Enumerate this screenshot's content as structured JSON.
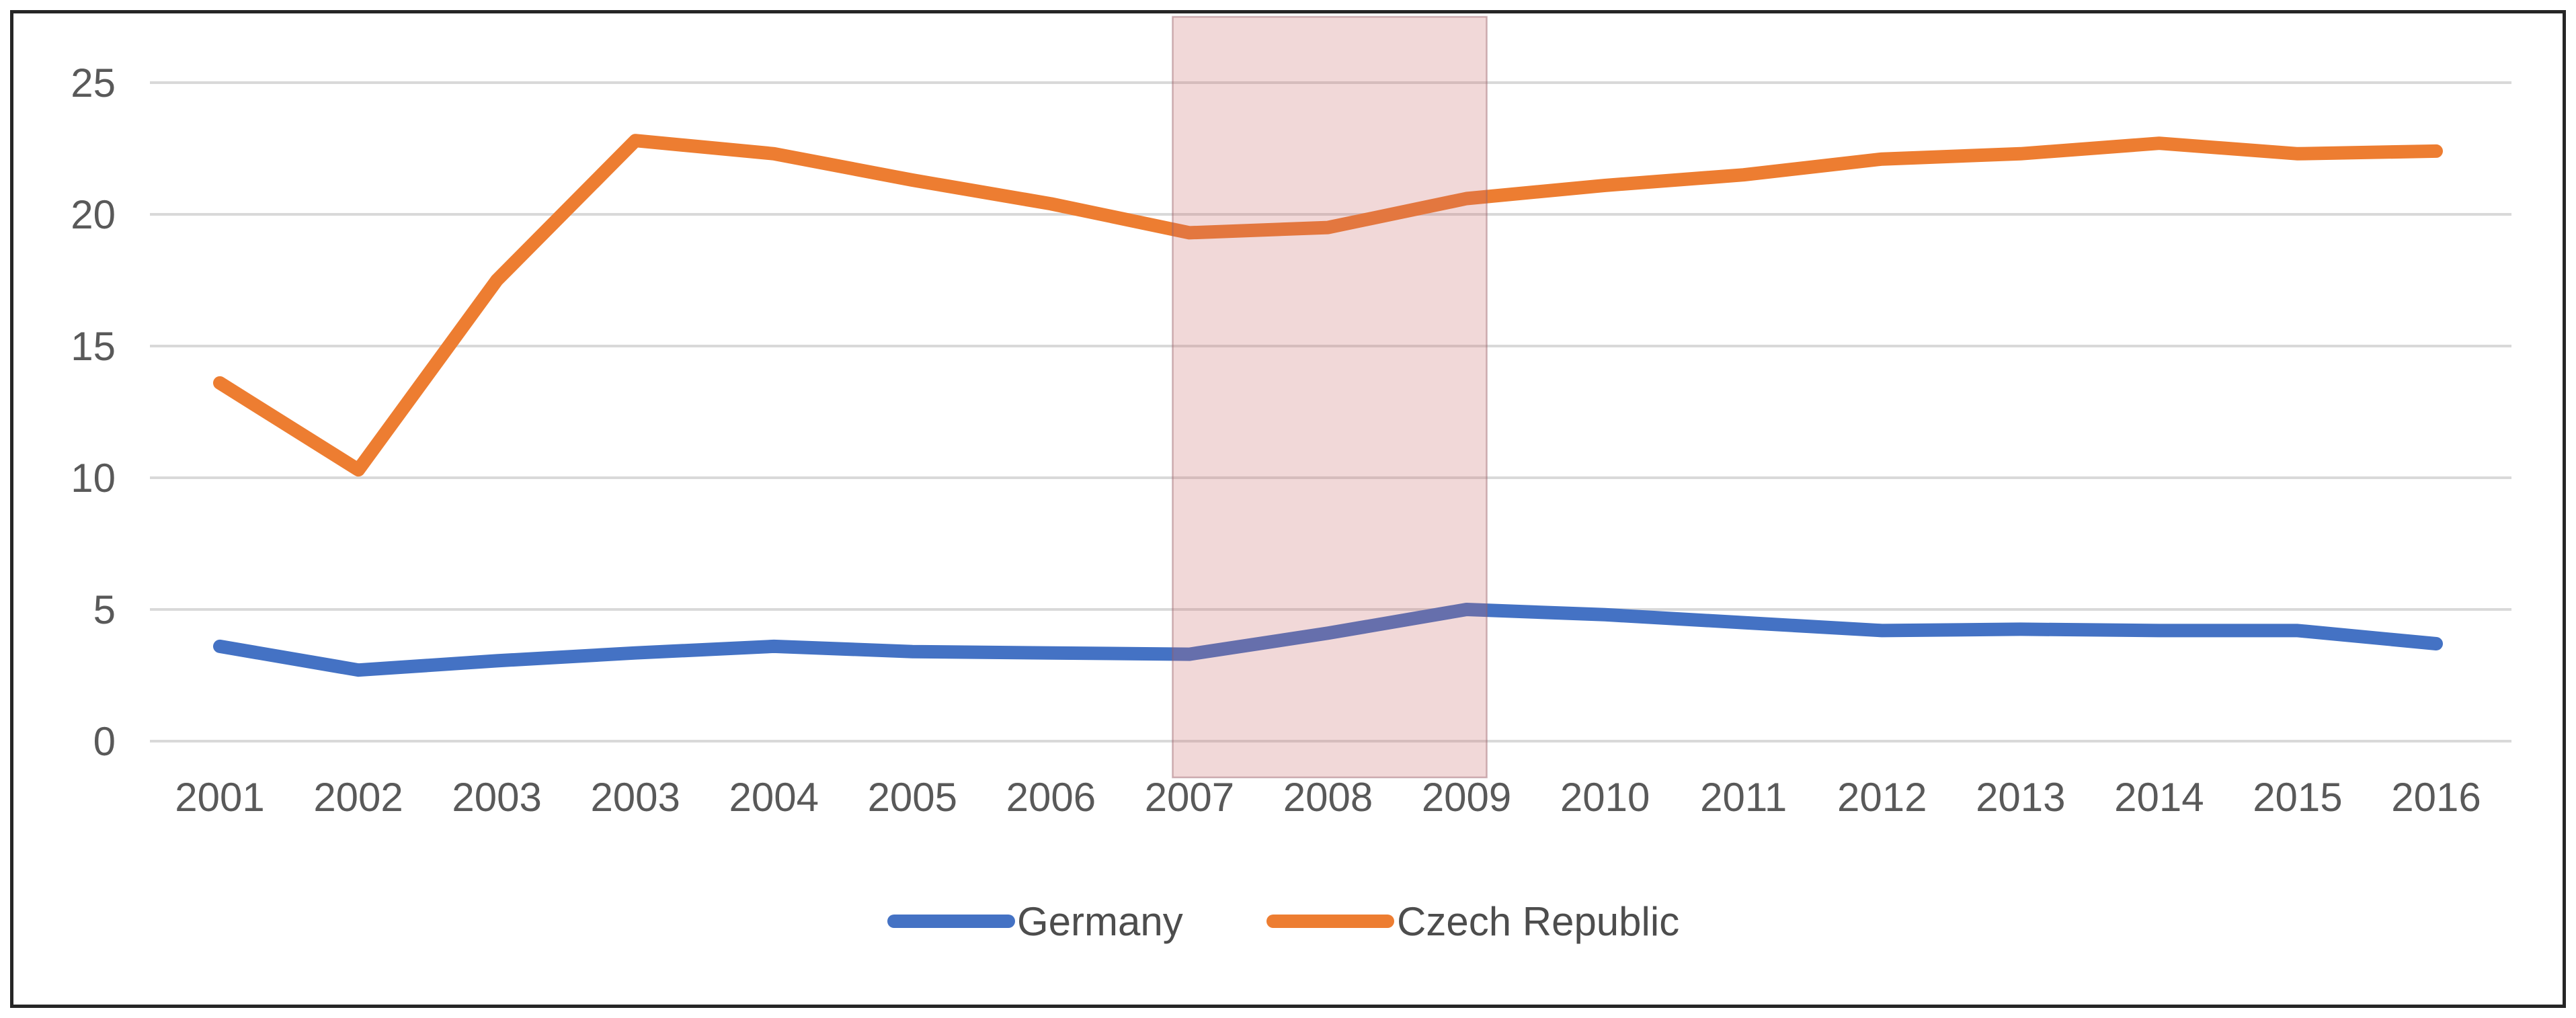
{
  "chart_data": {
    "type": "line",
    "title": "",
    "xlabel": "",
    "ylabel": "",
    "categories": [
      "2001",
      "2002",
      "2003",
      "2003",
      "2004",
      "2005",
      "2006",
      "2007",
      "2008",
      "2009",
      "2010",
      "2011",
      "2012",
      "2013",
      "2014",
      "2015",
      "2016"
    ],
    "series": [
      {
        "name": "Germany",
        "color": "#4472C4",
        "values": [
          3.6,
          2.7,
          3.05,
          3.35,
          3.6,
          3.4,
          3.35,
          3.3,
          4.1,
          5.0,
          4.8,
          4.5,
          4.2,
          4.25,
          4.2,
          4.2,
          3.7
        ]
      },
      {
        "name": "Czech Republic",
        "color": "#ED7D31",
        "values": [
          13.6,
          10.3,
          17.5,
          22.8,
          22.3,
          21.3,
          20.4,
          19.3,
          19.5,
          20.6,
          21.1,
          21.5,
          22.1,
          22.3,
          22.7,
          22.3,
          22.4
        ]
      }
    ],
    "y_ticks": [
      0,
      5,
      10,
      15,
      20,
      25
    ],
    "y_tick_labels": [
      "0",
      "5",
      "10",
      "15",
      "20",
      "25"
    ],
    "ylim": [
      0,
      26.5
    ],
    "grid": true,
    "gridline_color": "#D9D9D9",
    "axis_label_color": "#595959",
    "legend_position": "bottom",
    "highlight_band": {
      "from_category": "2007",
      "to_category": "2009",
      "from_index": 7,
      "to_index": 9,
      "fill": "rgba(200,105,105,0.26)",
      "border": "rgba(150,95,105,0.45)"
    },
    "frame_border_color": "#262626"
  }
}
